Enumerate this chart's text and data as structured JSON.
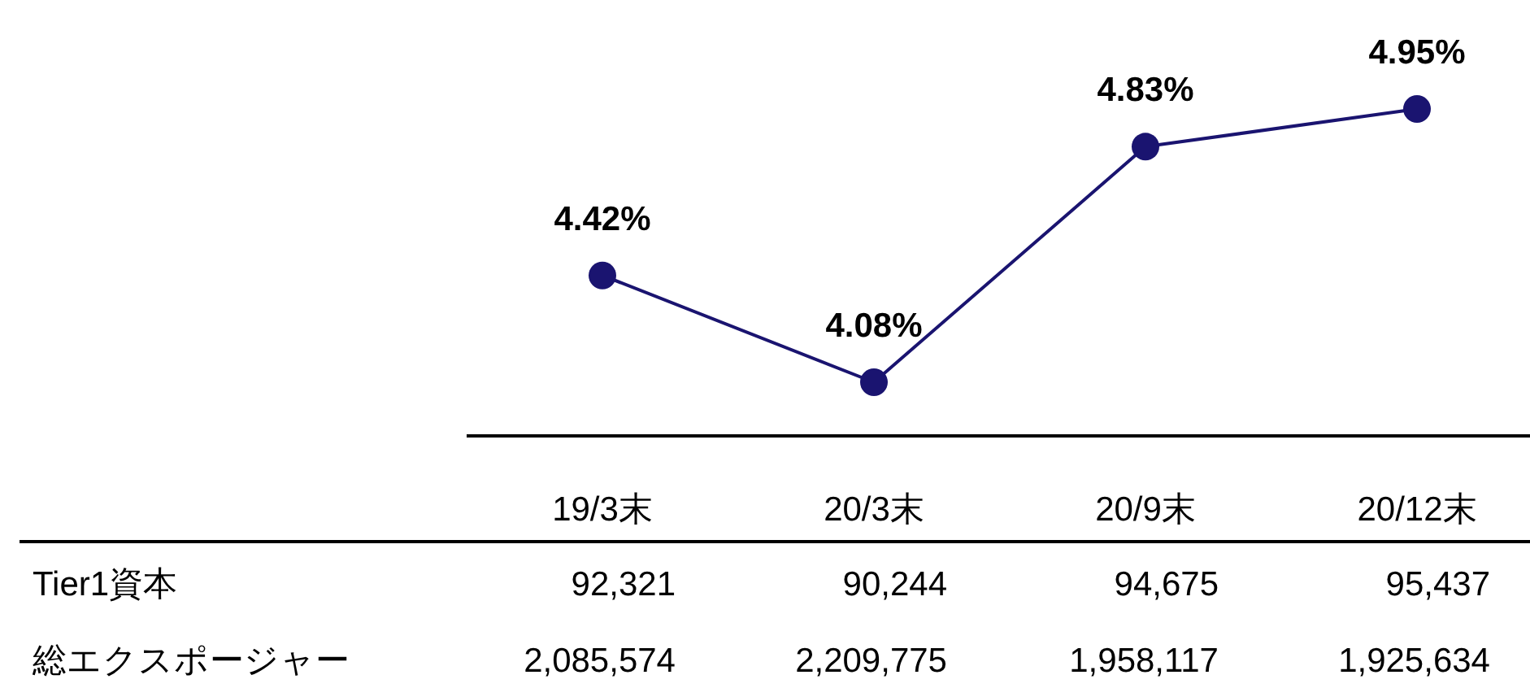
{
  "chart_data": {
    "type": "line",
    "categories": [
      "19/3末",
      "20/3末",
      "20/9末",
      "20/12末"
    ],
    "series": [
      {
        "color": "#1a1470",
        "values": [
          4.42,
          4.08,
          4.83,
          4.95
        ],
        "value_labels": [
          "4.42%",
          "4.08%",
          "4.83%",
          "4.95%"
        ]
      }
    ],
    "marker": "circle",
    "line_style": "solid",
    "annotations": [
      "Tier1資本",
      "92,321",
      "90,244",
      "94,675",
      "95,437",
      "総エクスポージャー",
      "2,085,574",
      "2,209,775",
      "1,958,117",
      "1,925,634"
    ]
  }
}
